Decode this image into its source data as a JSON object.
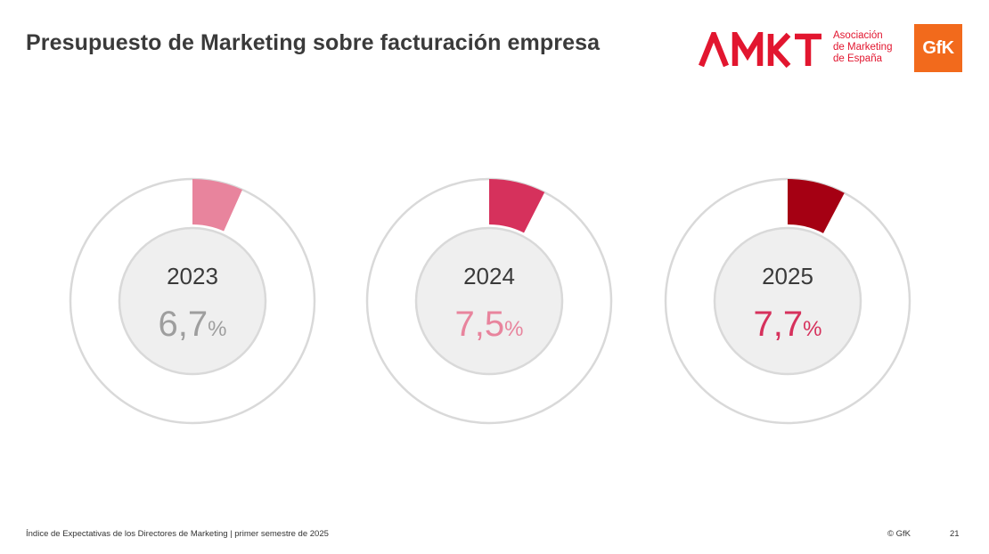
{
  "header": {
    "title": "Presupuesto de Marketing sobre facturación empresa",
    "amkt_logo_text": "AMKT",
    "amkt_subtitle": [
      "Asociación",
      "de Marketing",
      "de España"
    ],
    "gfk_logo_text": "GfK"
  },
  "chart_data": {
    "type": "donut",
    "title": "Presupuesto de Marketing sobre facturación empresa",
    "unit": "%",
    "items": [
      {
        "year": "2023",
        "value": 6.7,
        "label": "6,7",
        "segment_color": "#e8849d",
        "value_color": "#9e9e9e"
      },
      {
        "year": "2024",
        "value": 7.5,
        "label": "7,5",
        "segment_color": "#d6315c",
        "value_color": "#e8849d"
      },
      {
        "year": "2025",
        "value": 7.7,
        "label": "7,7",
        "segment_color": "#a50013",
        "value_color": "#d6315c"
      }
    ]
  },
  "colors": {
    "ring": "#d9d9d9",
    "center_fill": "#efefef",
    "year_text": "#3a3a3a",
    "brand_red": "#e2162f",
    "gfk_orange": "#f26a1c"
  },
  "footer": {
    "left": "Índice de Expectativas de los Directores de Marketing |  primer semestre de 2025",
    "copyright": "© GfK",
    "page": "21"
  }
}
